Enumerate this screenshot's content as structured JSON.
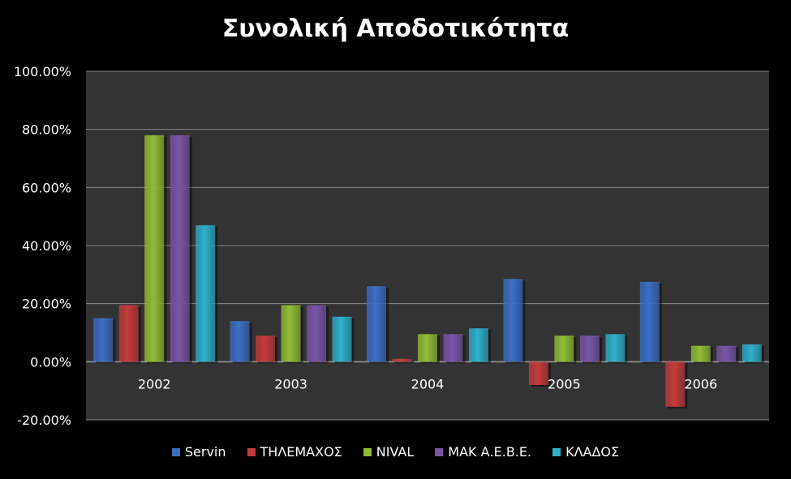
{
  "chart_data": {
    "type": "bar",
    "title": "Συνολική Αποδοτικότητα",
    "categories": [
      "2002",
      "2003",
      "2004",
      "2005",
      "2006"
    ],
    "series": [
      {
        "name": "Servin",
        "color": "#3c6fc4",
        "values": [
          15.0,
          14.0,
          26.0,
          28.5,
          27.5
        ]
      },
      {
        "name": "ΤΗΛΕΜΑΧΟΣ",
        "color": "#c43c3c",
        "values": [
          19.5,
          9.0,
          1.0,
          -8.0,
          -15.5
        ]
      },
      {
        "name": "NIVAL",
        "color": "#93be37",
        "values": [
          78.0,
          19.5,
          9.5,
          9.0,
          5.5
        ]
      },
      {
        "name": "ΜΑΚ Α.Ε.Β.Ε.",
        "color": "#7b55a8",
        "values": [
          78.0,
          19.5,
          9.5,
          9.0,
          5.5
        ]
      },
      {
        "name": "ΚΛΑΔΟΣ",
        "color": "#2fb1cc",
        "values": [
          47.0,
          15.5,
          11.5,
          9.5,
          6.0
        ]
      }
    ],
    "y_ticks": [
      "-20.00%",
      "0.00%",
      "20.00%",
      "40.00%",
      "60.00%",
      "80.00%",
      "100.00%"
    ],
    "ylim": [
      -20,
      100
    ],
    "grid": true,
    "legend_position": "bottom"
  }
}
